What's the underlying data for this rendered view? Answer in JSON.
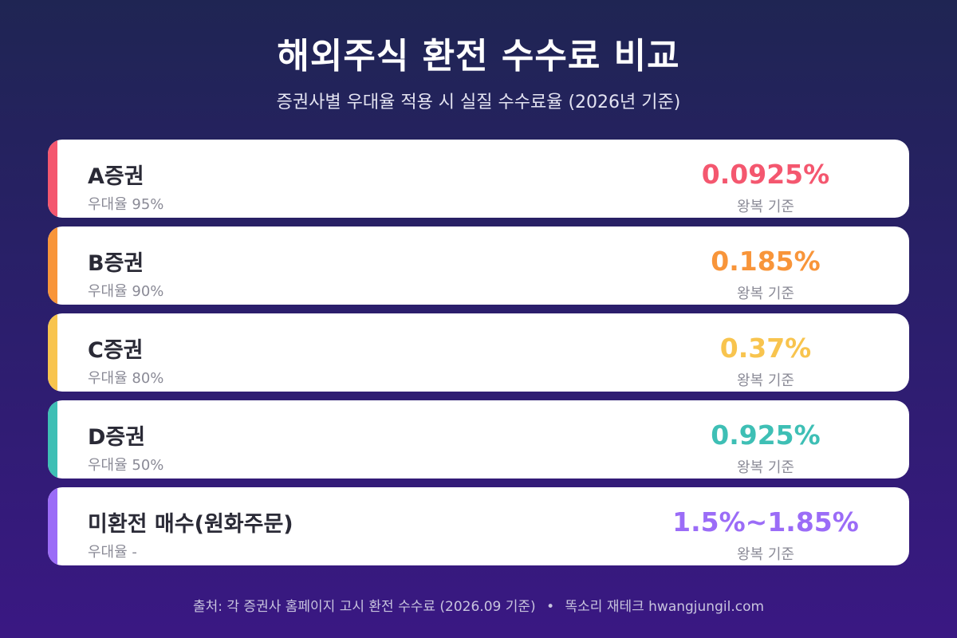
{
  "header": {
    "title": "해외주식 환전 수수료 비교",
    "subtitle": "증권사별 우대율 적용 시 실질 수수료율 (2026년 기준)"
  },
  "cards": [
    {
      "name": "A증권",
      "discount": "우대율 95%",
      "rate": "0.0925%",
      "basis": "왕복 기준",
      "color": "#f4576f"
    },
    {
      "name": "B증권",
      "discount": "우대율 90%",
      "rate": "0.185%",
      "basis": "왕복 기준",
      "color": "#f8953a"
    },
    {
      "name": "C증권",
      "discount": "우대율 80%",
      "rate": "0.37%",
      "basis": "왕복 기준",
      "color": "#f8c44e"
    },
    {
      "name": "D증권",
      "discount": "우대율 50%",
      "rate": "0.925%",
      "basis": "왕복 기준",
      "color": "#3ebfb5"
    },
    {
      "name": "미환전 매수(원화주문)",
      "discount": "우대율 -",
      "rate": "1.5%~1.85%",
      "basis": "왕복 기준",
      "color": "#9b6cf7"
    }
  ],
  "footer": {
    "source": "출처: 각 증권사 홈페이지 고시 환전 수수료 (2026.09 기준)",
    "separator": "•",
    "brand": "똑소리 재테크 hwangjungil.com"
  }
}
